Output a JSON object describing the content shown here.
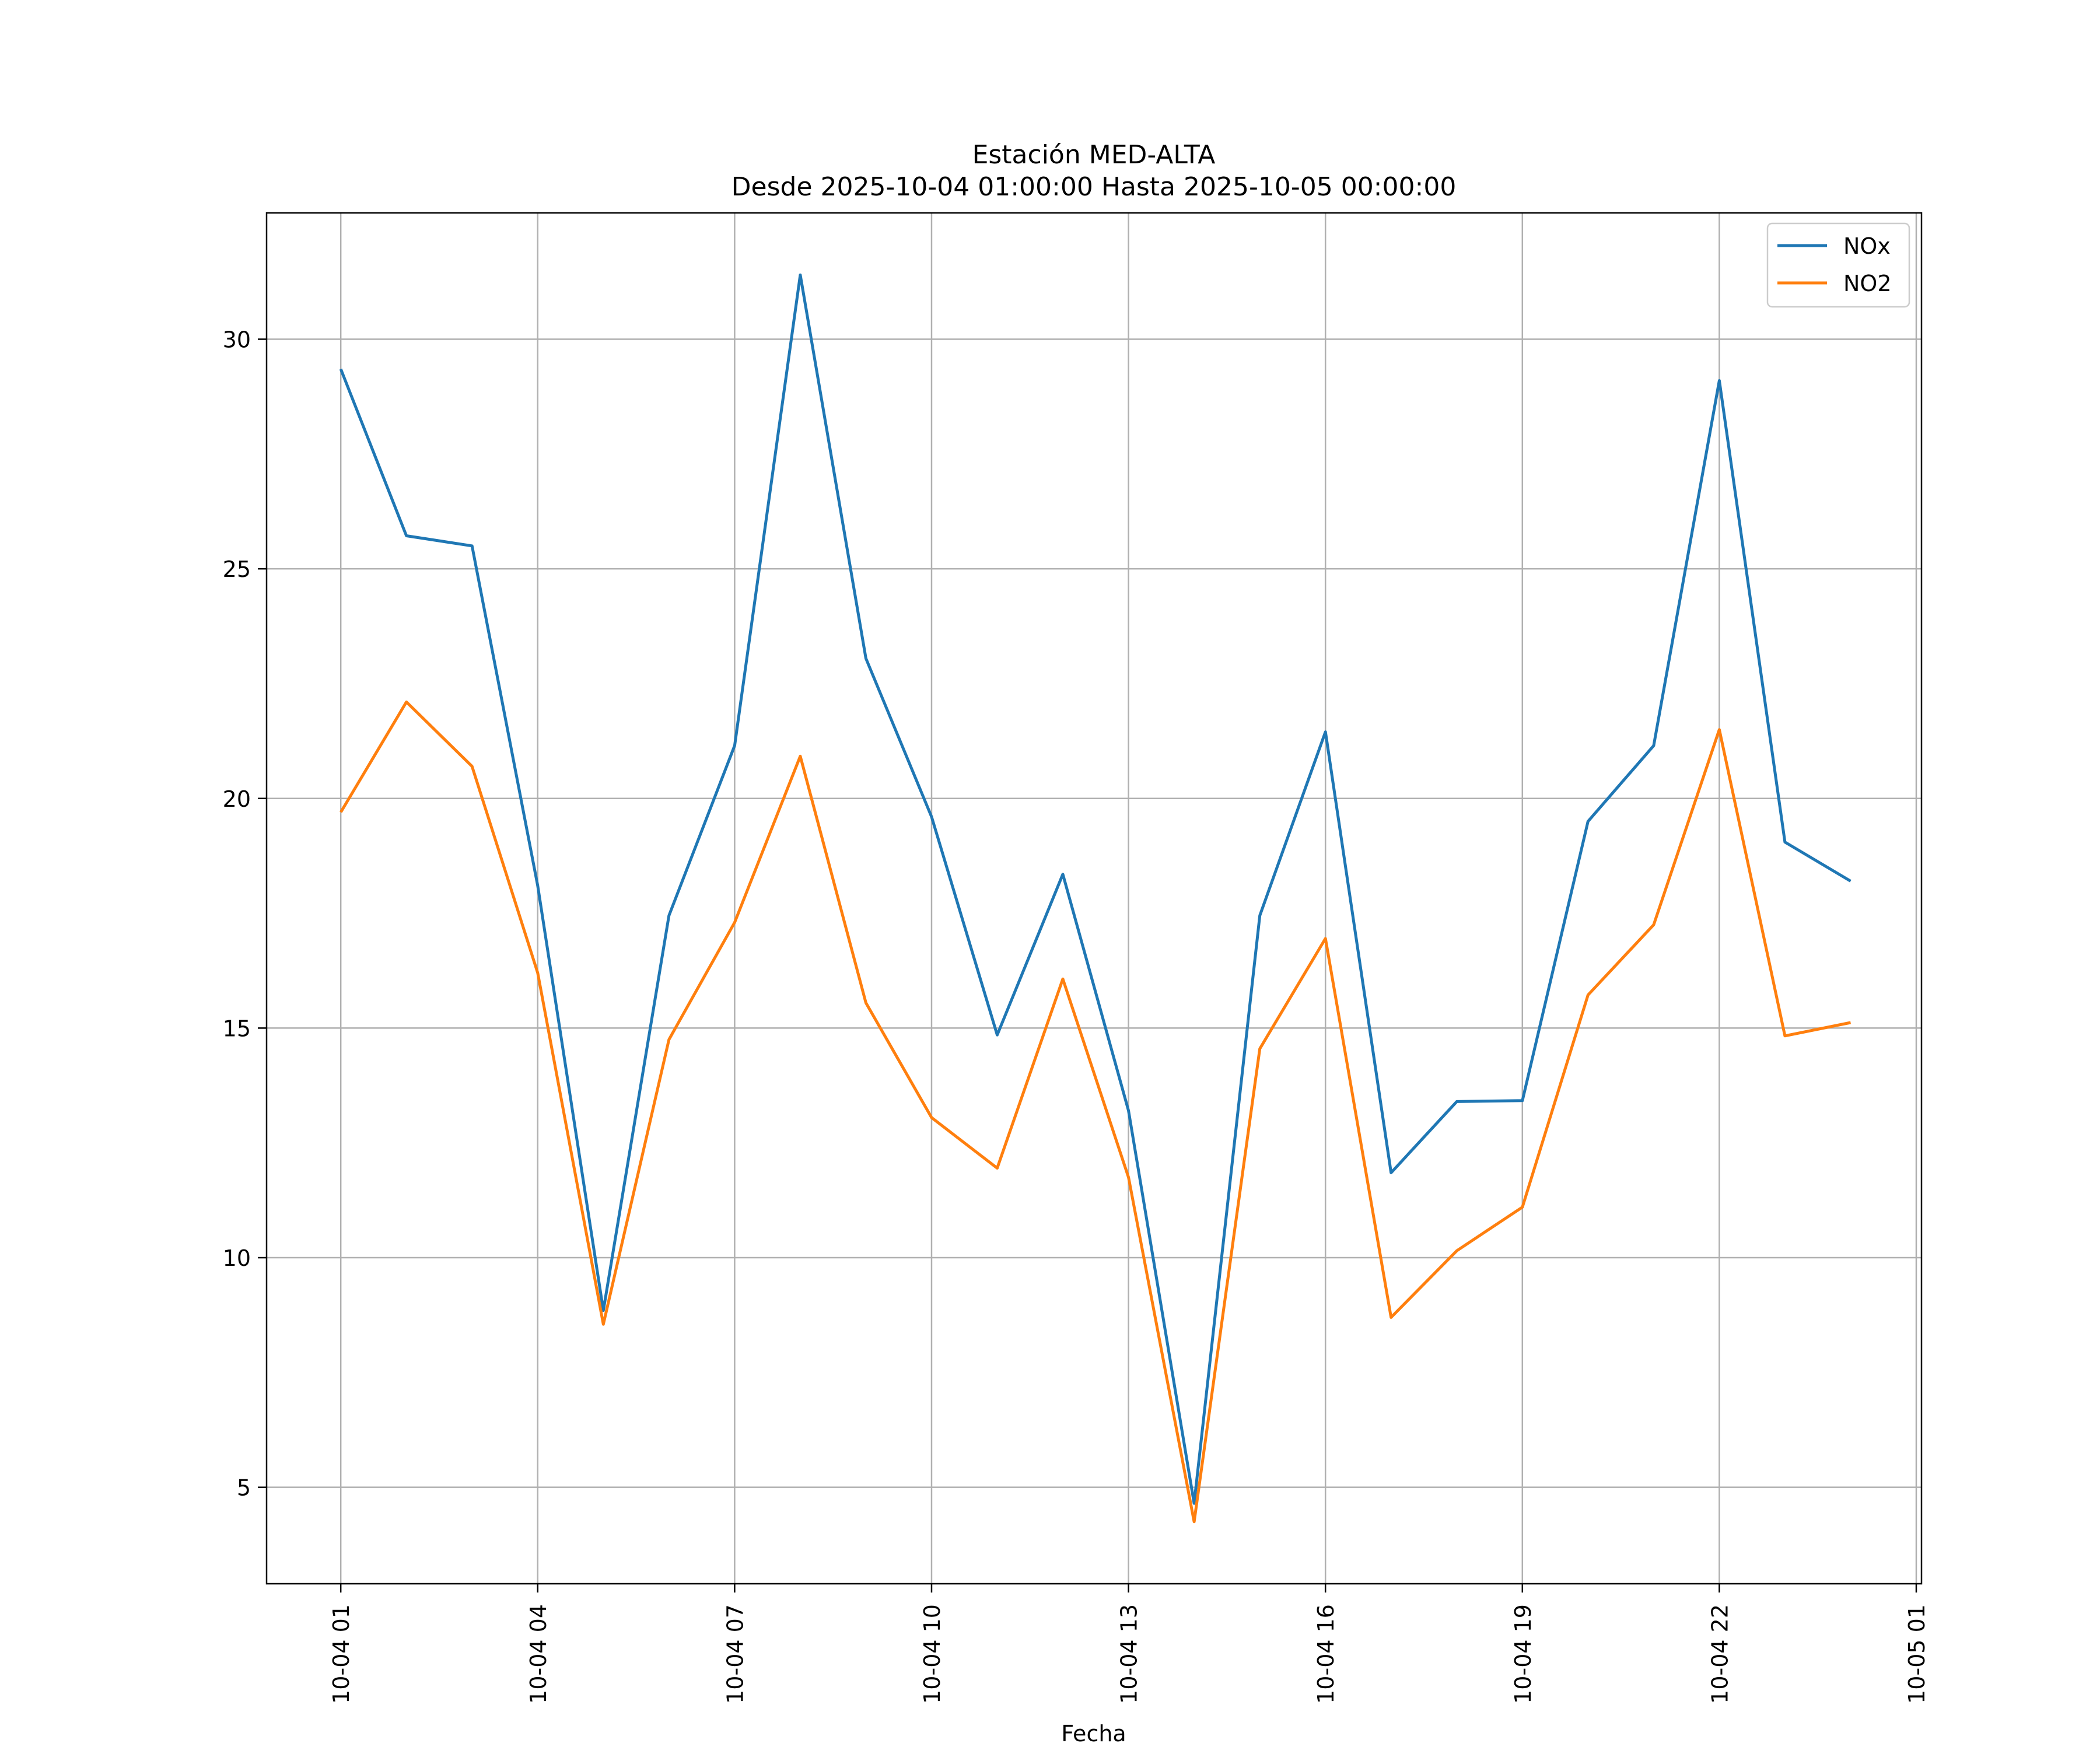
{
  "chart_data": {
    "type": "line",
    "title": [
      "Estación MED-ALTA",
      "Desde 2025-10-04 01:00:00 Hasta 2025-10-05 00:00:00"
    ],
    "xlabel": "Fecha",
    "ylabel": "",
    "x_hours": [
      1,
      2,
      3,
      4,
      5,
      6,
      7,
      8,
      9,
      10,
      11,
      12,
      13,
      14,
      15,
      16,
      17,
      18,
      19,
      20,
      21,
      22,
      23,
      24
    ],
    "x_tick_labels": [
      "10-04 01",
      "10-04 04",
      "10-04 07",
      "10-04 10",
      "10-04 13",
      "10-04 16",
      "10-04 19",
      "10-04 22",
      "10-05 01"
    ],
    "x_tick_hours": [
      1,
      4,
      7,
      10,
      13,
      16,
      19,
      22,
      25
    ],
    "xlim_hours": [
      -0.13,
      25.08
    ],
    "y_ticks": [
      5,
      10,
      15,
      20,
      25,
      30
    ],
    "ylim": [
      2.9,
      32.75
    ],
    "grid": true,
    "legend_position": "top-right",
    "series": [
      {
        "name": "NOx",
        "color": "#1f77b4",
        "values": [
          29.35,
          25.72,
          25.5,
          18.1,
          8.85,
          17.45,
          21.15,
          31.4,
          23.05,
          19.6,
          14.85,
          18.35,
          13.2,
          4.65,
          17.45,
          21.45,
          11.85,
          13.4,
          13.42,
          19.5,
          21.15,
          29.1,
          19.05,
          18.2
        ]
      },
      {
        "name": "NO2",
        "color": "#ff7f0e",
        "values": [
          19.7,
          22.1,
          20.7,
          16.2,
          8.55,
          14.75,
          17.3,
          20.92,
          15.55,
          13.05,
          11.95,
          16.07,
          11.75,
          4.25,
          14.55,
          16.95,
          8.7,
          10.15,
          11.1,
          15.72,
          17.25,
          21.5,
          14.83,
          15.12
        ]
      }
    ]
  }
}
